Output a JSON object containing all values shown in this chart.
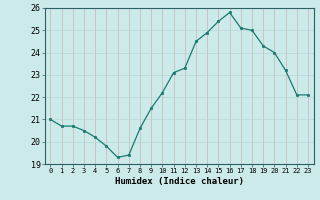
{
  "x": [
    0,
    1,
    2,
    3,
    4,
    5,
    6,
    7,
    8,
    9,
    10,
    11,
    12,
    13,
    14,
    15,
    16,
    17,
    18,
    19,
    20,
    21,
    22,
    23
  ],
  "y": [
    21.0,
    20.7,
    20.7,
    20.5,
    20.2,
    19.8,
    19.3,
    19.4,
    20.6,
    21.5,
    22.2,
    23.1,
    23.3,
    24.5,
    24.9,
    25.4,
    25.8,
    25.1,
    25.0,
    24.3,
    24.0,
    23.2,
    22.1,
    22.1
  ],
  "line_color": "#1a7a6e",
  "marker_color": "#1a7a6e",
  "bg_color": "#cceaea",
  "grid_color": "#b8d8d8",
  "xlabel": "Humidex (Indice chaleur)",
  "ylim": [
    19,
    26
  ],
  "xlim": [
    -0.5,
    23.5
  ],
  "yticks": [
    19,
    20,
    21,
    22,
    23,
    24,
    25,
    26
  ],
  "xticks": [
    0,
    1,
    2,
    3,
    4,
    5,
    6,
    7,
    8,
    9,
    10,
    11,
    12,
    13,
    14,
    15,
    16,
    17,
    18,
    19,
    20,
    21,
    22,
    23
  ]
}
